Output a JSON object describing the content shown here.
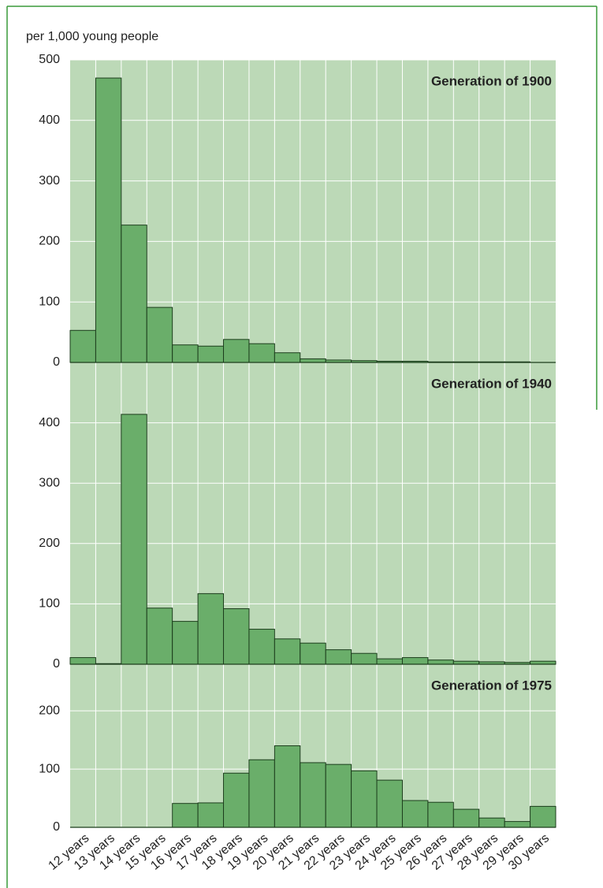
{
  "chart_data": [
    {
      "type": "bar",
      "ylabel": "per 1,000 young people",
      "title": "Generation of 1900",
      "values": [
        53,
        470,
        227,
        91,
        29,
        27,
        38,
        31,
        16,
        6,
        4,
        3,
        2,
        2,
        1,
        1,
        1,
        1,
        0
      ],
      "ylim": [
        0,
        500
      ],
      "yticks": [
        0,
        100,
        200,
        300,
        400,
        500
      ],
      "color": "#6aae6a",
      "grid": true
    },
    {
      "type": "bar",
      "title": "Generation of 1940",
      "values": [
        11,
        1,
        414,
        93,
        71,
        117,
        92,
        58,
        42,
        35,
        24,
        18,
        9,
        11,
        7,
        5,
        4,
        3,
        5
      ],
      "ylim": [
        0,
        500
      ],
      "yticks": [
        0,
        100,
        200,
        300,
        400
      ],
      "color": "#6aae6a",
      "grid": true
    },
    {
      "type": "bar",
      "title": "Generation of 1975",
      "categories": [
        "12 years",
        "13 years",
        "14 years",
        "15 years",
        "16 years",
        "17 years",
        "18 years",
        "19 years",
        "20 years",
        "21 years",
        "22 years",
        "23 years",
        "24 years",
        "25 years",
        "26 years",
        "27 years",
        "28 years",
        "29 years",
        "30 years"
      ],
      "values": [
        0,
        0,
        0,
        0,
        41,
        42,
        93,
        116,
        140,
        111,
        108,
        97,
        81,
        46,
        43,
        31,
        16,
        10,
        36
      ],
      "ylim": [
        0,
        280
      ],
      "yticks": [
        0,
        100,
        200
      ],
      "color": "#6aae6a",
      "grid": true
    }
  ]
}
